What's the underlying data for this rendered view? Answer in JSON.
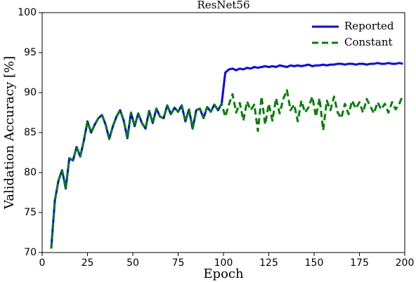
{
  "chart_data": {
    "type": "line",
    "title": "ResNet56",
    "xlabel": "Epoch",
    "ylabel": "Validation Accuracy [%]",
    "x": [
      5,
      7,
      9,
      11,
      13,
      15,
      17,
      19,
      21,
      23,
      25,
      27,
      29,
      31,
      33,
      35,
      37,
      39,
      41,
      43,
      45,
      47,
      49,
      51,
      53,
      55,
      57,
      59,
      61,
      63,
      65,
      67,
      69,
      71,
      73,
      75,
      77,
      79,
      81,
      83,
      85,
      87,
      89,
      91,
      93,
      95,
      97,
      99,
      101,
      103,
      105,
      107,
      109,
      111,
      113,
      115,
      117,
      119,
      121,
      123,
      125,
      127,
      129,
      131,
      133,
      135,
      137,
      139,
      141,
      143,
      145,
      147,
      149,
      151,
      153,
      155,
      157,
      159,
      161,
      163,
      165,
      167,
      169,
      171,
      173,
      175,
      177,
      179,
      181,
      183,
      185,
      187,
      189,
      191,
      193,
      195,
      197,
      199
    ],
    "series": [
      {
        "name": "Reported",
        "color": "#0000ff",
        "dashed": false,
        "values": [
          70.5,
          76.5,
          79,
          80.3,
          78,
          81.8,
          81.5,
          83.2,
          82,
          84,
          86.4,
          85,
          86,
          86.8,
          87.2,
          86,
          84.2,
          85.8,
          87,
          87.8,
          86.5,
          84.3,
          87.5,
          85.8,
          87.4,
          86.2,
          85.5,
          87.7,
          86.2,
          88,
          87,
          86.8,
          88.4,
          87.3,
          88.1,
          87.6,
          88.4,
          86.4,
          87.9,
          85.5,
          87.8,
          88,
          86.8,
          88.2,
          87.6,
          88.5,
          87.8,
          88.6,
          92.5,
          92.9,
          93,
          92.8,
          93,
          92.9,
          93.1,
          93,
          93.2,
          93.1,
          93.2,
          93.3,
          93.2,
          93.3,
          93.2,
          93.4,
          93.3,
          93.2,
          93.4,
          93.3,
          93.4,
          93.3,
          93.4,
          93.5,
          93.3,
          93.4,
          93.4,
          93.5,
          93.4,
          93.5,
          93.5,
          93.6,
          93.6,
          93.5,
          93.6,
          93.6,
          93.5,
          93.6,
          93.6,
          93.5,
          93.6,
          93.6,
          93.7,
          93.6,
          93.6,
          93.7,
          93.6,
          93.6,
          93.7,
          93.6
        ]
      },
      {
        "name": "Constant",
        "color": "#008000",
        "dashed": true,
        "values": [
          70.5,
          76.5,
          79,
          80.3,
          78,
          81.8,
          81.5,
          83.2,
          82,
          84,
          86.4,
          85,
          86,
          86.8,
          87.2,
          86,
          84.2,
          85.8,
          87,
          87.8,
          86.5,
          84.3,
          87.5,
          85.8,
          87.4,
          86.2,
          85.5,
          87.7,
          86.2,
          88,
          87,
          86.8,
          88.4,
          87.3,
          88.1,
          87.6,
          88.4,
          86.4,
          87.9,
          85.5,
          87.8,
          88,
          86.8,
          88.2,
          87.6,
          88.5,
          87.8,
          88.6,
          87,
          88.5,
          89.8,
          87.5,
          88.7,
          86.5,
          88.9,
          87.8,
          88.5,
          85.2,
          89.5,
          86,
          88.6,
          86.5,
          89.3,
          87.4,
          89.2,
          90.3,
          87.8,
          88.5,
          86.4,
          89,
          87.5,
          88.2,
          89.5,
          87,
          89.3,
          85.3,
          89,
          87.8,
          89.5,
          87.5,
          86.8,
          88.6,
          87.3,
          89,
          88,
          88.8,
          87.5,
          89.2,
          88.3,
          87.4,
          88.8,
          87.9,
          88.6,
          87.5,
          88.8,
          87.9,
          88.6,
          89.7
        ]
      }
    ],
    "xlim": [
      0,
      200
    ],
    "xticks": [
      0,
      25,
      50,
      75,
      100,
      125,
      150,
      175,
      200
    ],
    "ylim": [
      70,
      100
    ],
    "yticks": [
      70,
      75,
      80,
      85,
      90,
      95,
      100
    ],
    "legend": "upper right",
    "grid": false
  }
}
